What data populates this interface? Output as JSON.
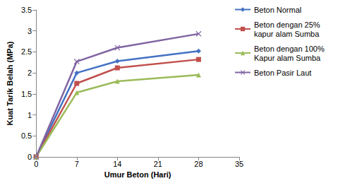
{
  "chart_data": {
    "type": "line",
    "x_label": "Umur Beton (Hari)",
    "y_label": "Kuat Tarik Belah (MPa)",
    "x": [
      0,
      7,
      14,
      28
    ],
    "xlim": [
      0,
      35
    ],
    "xticks": [
      0,
      7,
      14,
      21,
      28,
      35
    ],
    "ylim": [
      0,
      3.5
    ],
    "yticks": [
      0,
      0.5,
      1,
      1.5,
      2,
      2.5,
      3,
      3.5
    ],
    "grid": false,
    "legend": "right",
    "series": [
      {
        "name": "Beton Normal",
        "color": "#4472c4",
        "marker": "diamond",
        "values": [
          0,
          2.0,
          2.28,
          2.52
        ]
      },
      {
        "name": "Beton dengan 25% kapur alam Sumba",
        "color": "#c0504d",
        "marker": "square",
        "values": [
          0,
          1.75,
          2.12,
          2.32
        ]
      },
      {
        "name": "Beton dengan 100% Kapur alam Sumba",
        "color": "#9bbb59",
        "marker": "triangle",
        "values": [
          0,
          1.53,
          1.8,
          1.95
        ]
      },
      {
        "name": "Beton Pasir Laut",
        "color": "#8064a2",
        "marker": "x",
        "values": [
          0,
          2.27,
          2.6,
          2.93
        ]
      }
    ]
  }
}
